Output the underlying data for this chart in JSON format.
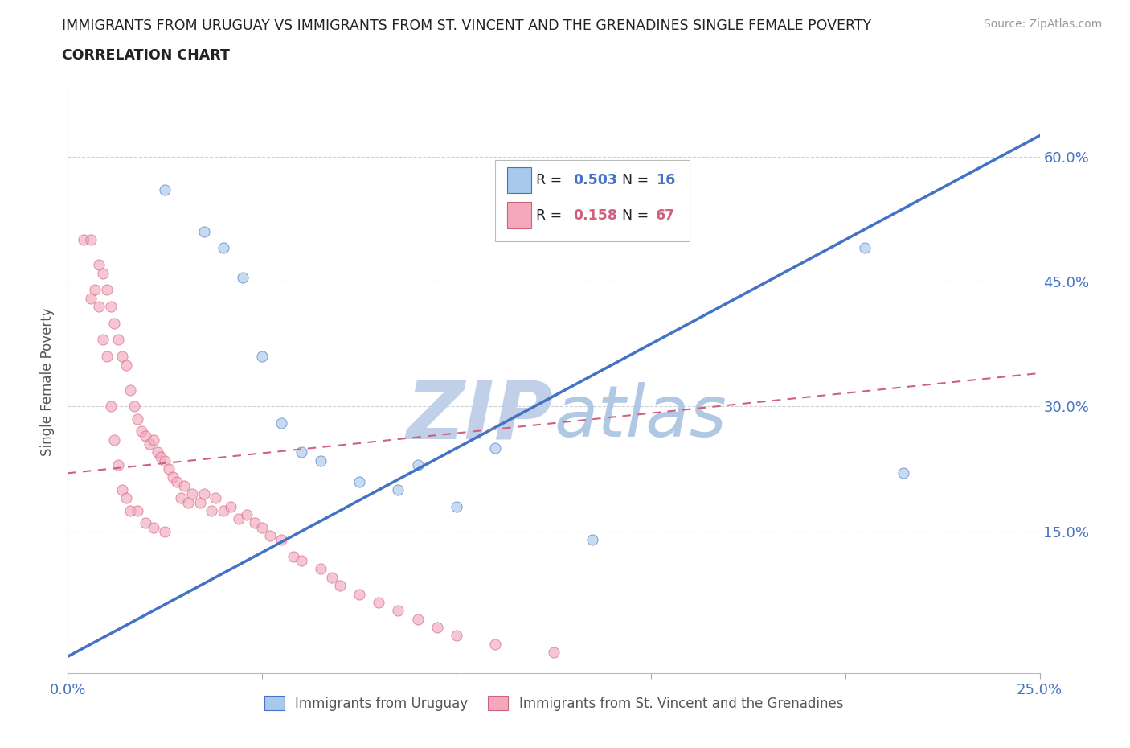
{
  "title_line1": "IMMIGRANTS FROM URUGUAY VS IMMIGRANTS FROM ST. VINCENT AND THE GRENADINES SINGLE FEMALE POVERTY",
  "title_line2": "CORRELATION CHART",
  "source_text": "Source: ZipAtlas.com",
  "ylabel": "Single Female Poverty",
  "xlim": [
    0.0,
    0.25
  ],
  "ylim": [
    -0.02,
    0.68
  ],
  "ytick_positions": [
    0.15,
    0.3,
    0.45,
    0.6
  ],
  "ytick_labels": [
    "15.0%",
    "30.0%",
    "45.0%",
    "60.0%"
  ],
  "legend_R1": "0.503",
  "legend_N1": "16",
  "legend_R2": "0.158",
  "legend_N2": "67",
  "color_uruguay": "#A8C8EC",
  "color_stv": "#F4A8BC",
  "color_line_uruguay": "#4472C4",
  "color_line_stv": "#D06080",
  "watermark_color": "#D0DFF0",
  "background_color": "#FFFFFF",
  "grid_color": "#CCCCCC",
  "title_color": "#222222",
  "axis_color": "#4472C4",
  "uruguay_x": [
    0.025,
    0.035,
    0.04,
    0.045,
    0.05,
    0.055,
    0.06,
    0.065,
    0.075,
    0.085,
    0.09,
    0.1,
    0.11,
    0.135,
    0.205,
    0.215
  ],
  "uruguay_y": [
    0.56,
    0.51,
    0.49,
    0.455,
    0.36,
    0.28,
    0.245,
    0.235,
    0.21,
    0.2,
    0.23,
    0.18,
    0.25,
    0.14,
    0.49,
    0.22
  ],
  "stv_x": [
    0.004,
    0.006,
    0.006,
    0.007,
    0.008,
    0.008,
    0.009,
    0.009,
    0.01,
    0.01,
    0.011,
    0.011,
    0.012,
    0.012,
    0.013,
    0.013,
    0.014,
    0.014,
    0.015,
    0.015,
    0.016,
    0.016,
    0.017,
    0.018,
    0.018,
    0.019,
    0.02,
    0.02,
    0.021,
    0.022,
    0.022,
    0.023,
    0.024,
    0.025,
    0.025,
    0.026,
    0.027,
    0.028,
    0.029,
    0.03,
    0.031,
    0.032,
    0.034,
    0.035,
    0.037,
    0.038,
    0.04,
    0.042,
    0.044,
    0.046,
    0.048,
    0.05,
    0.052,
    0.055,
    0.058,
    0.06,
    0.065,
    0.068,
    0.07,
    0.075,
    0.08,
    0.085,
    0.09,
    0.095,
    0.1,
    0.11,
    0.125
  ],
  "stv_y": [
    0.5,
    0.5,
    0.43,
    0.44,
    0.47,
    0.42,
    0.46,
    0.38,
    0.44,
    0.36,
    0.42,
    0.3,
    0.4,
    0.26,
    0.38,
    0.23,
    0.36,
    0.2,
    0.35,
    0.19,
    0.32,
    0.175,
    0.3,
    0.285,
    0.175,
    0.27,
    0.265,
    0.16,
    0.255,
    0.26,
    0.155,
    0.245,
    0.24,
    0.235,
    0.15,
    0.225,
    0.215,
    0.21,
    0.19,
    0.205,
    0.185,
    0.195,
    0.185,
    0.195,
    0.175,
    0.19,
    0.175,
    0.18,
    0.165,
    0.17,
    0.16,
    0.155,
    0.145,
    0.14,
    0.12,
    0.115,
    0.105,
    0.095,
    0.085,
    0.075,
    0.065,
    0.055,
    0.045,
    0.035,
    0.025,
    0.015,
    0.005
  ],
  "uru_line_x": [
    0.0,
    0.25
  ],
  "uru_line_y": [
    0.0,
    0.625
  ],
  "stv_line_x": [
    0.0,
    0.25
  ],
  "stv_line_y": [
    0.22,
    0.34
  ],
  "marker_size": 90,
  "marker_alpha": 0.65
}
